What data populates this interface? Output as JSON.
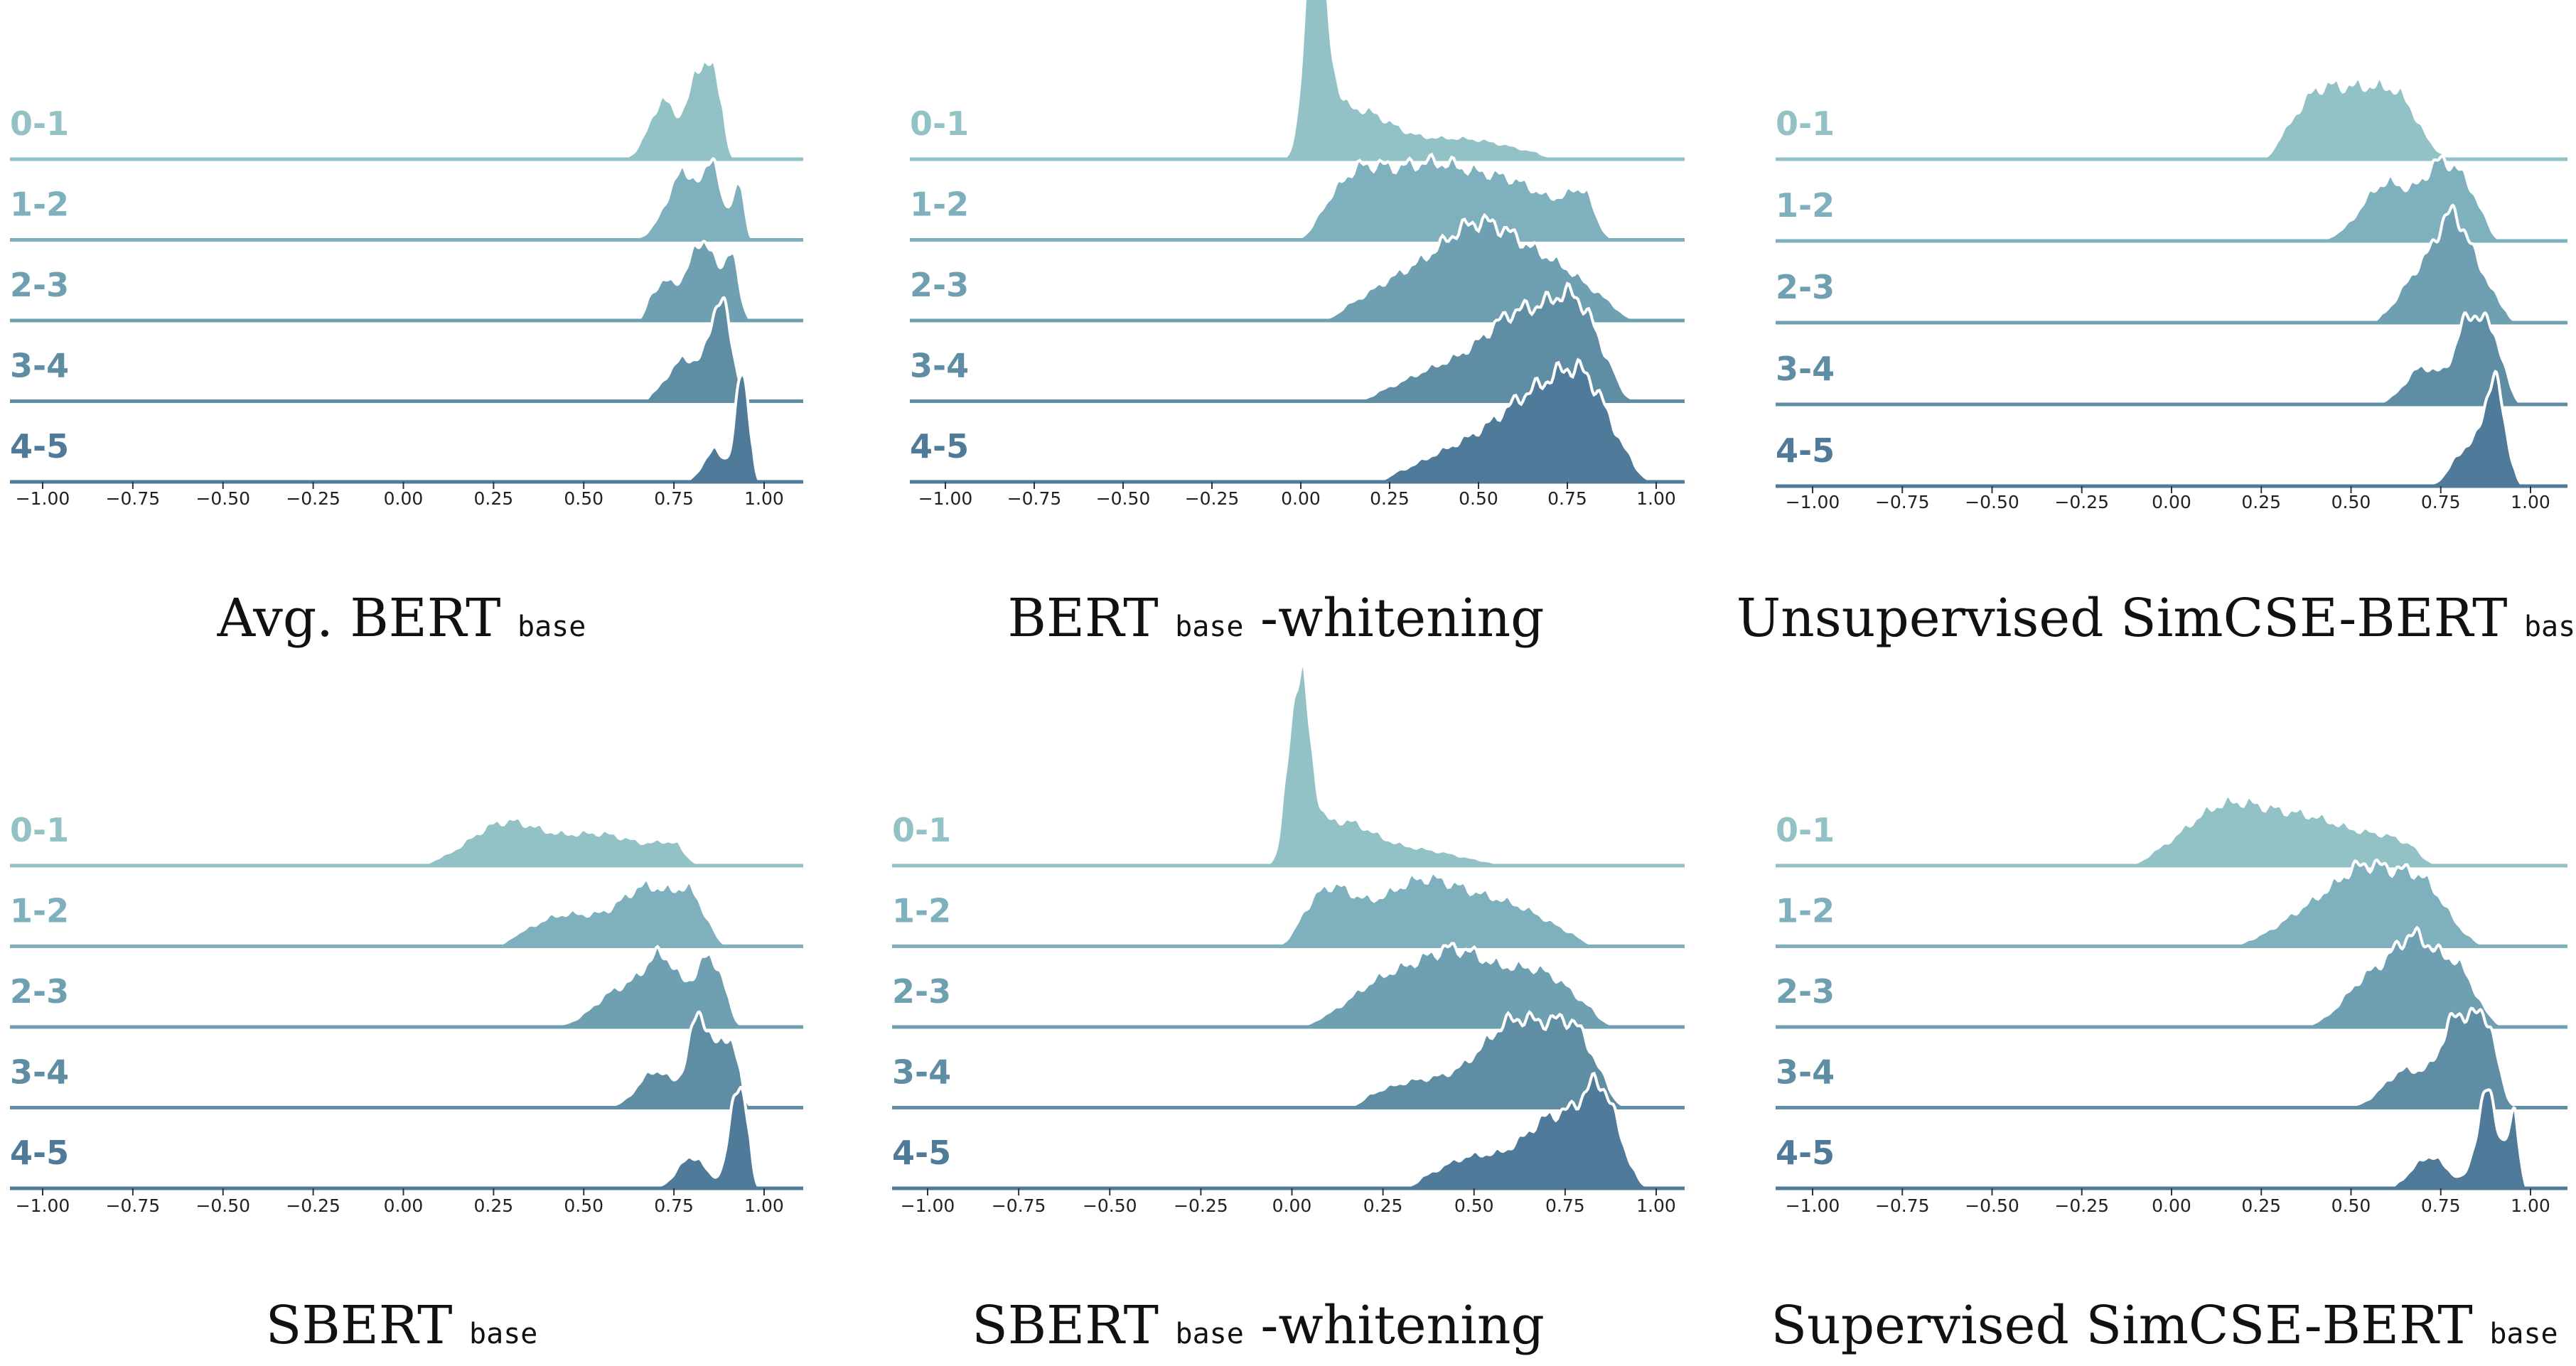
{
  "chart_data": [
    {
      "type": "ridgeline",
      "caption": {
        "pre": "Avg. BERT",
        "sub": "base",
        "post": ""
      },
      "x_ticks": [
        "−1.00",
        "−0.75",
        "−0.50",
        "−0.25",
        "0.00",
        "0.25",
        "0.50",
        "0.75",
        "1.00"
      ],
      "xlim": [
        -1.0,
        1.0
      ],
      "series": [
        {
          "label": "0-1",
          "peaks": [
            [
              0.72,
              0.04,
              0.55
            ],
            [
              0.82,
              0.03,
              0.8
            ],
            [
              0.87,
              0.025,
              0.55
            ]
          ],
          "range": [
            0.53,
            0.92
          ]
        },
        {
          "label": "1-2",
          "peaks": [
            [
              0.78,
              0.05,
              0.65
            ],
            [
              0.86,
              0.02,
              0.6
            ],
            [
              0.93,
              0.02,
              0.55
            ]
          ],
          "range": [
            0.6,
            0.97
          ]
        },
        {
          "label": "2-3",
          "peaks": [
            [
              0.72,
              0.04,
              0.35
            ],
            [
              0.83,
              0.04,
              0.75
            ],
            [
              0.91,
              0.02,
              0.55
            ]
          ],
          "range": [
            0.65,
            0.98
          ]
        },
        {
          "label": "3-4",
          "peaks": [
            [
              0.78,
              0.05,
              0.4
            ],
            [
              0.88,
              0.03,
              0.9
            ]
          ],
          "range": [
            0.66,
            0.97
          ]
        },
        {
          "label": "4-5",
          "peaks": [
            [
              0.86,
              0.03,
              0.3
            ],
            [
              0.94,
              0.02,
              1.0
            ]
          ],
          "range": [
            0.75,
            0.99
          ]
        }
      ]
    },
    {
      "type": "ridgeline",
      "caption": {
        "pre": "BERT",
        "sub": "base",
        "post": "-whitening"
      },
      "x_ticks": [
        "−1.00",
        "−0.75",
        "−0.50",
        "−0.25",
        "0.00",
        "0.25",
        "0.50",
        "0.75",
        "1.00"
      ],
      "xlim": [
        -1.0,
        1.0
      ],
      "series": [
        {
          "label": "0-1",
          "peaks": [
            [
              0.04,
              0.035,
              1.75
            ],
            [
              0.15,
              0.1,
              0.45
            ],
            [
              0.45,
              0.15,
              0.2
            ]
          ],
          "range": [
            -0.05,
            0.73
          ]
        },
        {
          "label": "1-2",
          "peaks": [
            [
              0.15,
              0.08,
              0.5
            ],
            [
              0.35,
              0.12,
              0.65
            ],
            [
              0.6,
              0.12,
              0.5
            ],
            [
              0.8,
              0.05,
              0.35
            ]
          ],
          "range": [
            -0.02,
            0.88
          ]
        },
        {
          "label": "2-3",
          "peaks": [
            [
              0.3,
              0.12,
              0.4
            ],
            [
              0.5,
              0.1,
              0.7
            ],
            [
              0.7,
              0.12,
              0.5
            ]
          ],
          "range": [
            0.05,
            0.95
          ]
        },
        {
          "label": "3-4",
          "peaks": [
            [
              0.4,
              0.12,
              0.3
            ],
            [
              0.62,
              0.1,
              0.75
            ],
            [
              0.78,
              0.07,
              0.75
            ]
          ],
          "range": [
            0.15,
            0.95
          ]
        },
        {
          "label": "4-5",
          "peaks": [
            [
              0.45,
              0.12,
              0.3
            ],
            [
              0.65,
              0.1,
              0.65
            ],
            [
              0.8,
              0.08,
              0.8
            ]
          ],
          "range": [
            0.2,
            1.0
          ]
        }
      ]
    },
    {
      "type": "ridgeline",
      "caption": {
        "pre": "Unsupervised SimCSE-BERT",
        "sub": "base",
        "post": ""
      },
      "x_ticks": [
        "−1.00",
        "−0.75",
        "−0.50",
        "−0.25",
        "0.00",
        "0.25",
        "0.50",
        "0.75",
        "1.00"
      ],
      "xlim": [
        -1.0,
        1.0
      ],
      "series": [
        {
          "label": "0-1",
          "peaks": [
            [
              0.4,
              0.07,
              0.55
            ],
            [
              0.55,
              0.08,
              0.6
            ],
            [
              0.65,
              0.05,
              0.3
            ]
          ],
          "range": [
            0.25,
            0.8
          ]
        },
        {
          "label": "1-2",
          "peaks": [
            [
              0.6,
              0.07,
              0.55
            ],
            [
              0.75,
              0.05,
              0.65
            ],
            [
              0.83,
              0.04,
              0.35
            ]
          ],
          "range": [
            0.4,
            0.93
          ]
        },
        {
          "label": "2-3",
          "peaks": [
            [
              0.7,
              0.06,
              0.5
            ],
            [
              0.78,
              0.04,
              0.65
            ],
            [
              0.85,
              0.05,
              0.45
            ]
          ],
          "range": [
            0.55,
            0.97
          ]
        },
        {
          "label": "3-4",
          "peaks": [
            [
              0.7,
              0.05,
              0.35
            ],
            [
              0.83,
              0.04,
              0.8
            ],
            [
              0.9,
              0.03,
              0.5
            ]
          ],
          "range": [
            0.55,
            0.99
          ]
        },
        {
          "label": "4-5",
          "peaks": [
            [
              0.82,
              0.04,
              0.35
            ],
            [
              0.9,
              0.03,
              0.95
            ]
          ],
          "range": [
            0.6,
            0.99
          ]
        }
      ]
    },
    {
      "type": "ridgeline",
      "caption": {
        "pre": "SBERT",
        "sub": "base",
        "post": ""
      },
      "x_ticks": [
        "−1.00",
        "−0.75",
        "−0.50",
        "−0.25",
        "0.00",
        "0.25",
        "0.50",
        "0.75",
        "1.00"
      ],
      "xlim": [
        -1.0,
        1.0
      ],
      "series": [
        {
          "label": "0-1",
          "peaks": [
            [
              0.28,
              0.1,
              0.4
            ],
            [
              0.55,
              0.12,
              0.3
            ],
            [
              0.75,
              0.05,
              0.15
            ]
          ],
          "range": [
            0.02,
            0.83
          ]
        },
        {
          "label": "1-2",
          "peaks": [
            [
              0.45,
              0.1,
              0.3
            ],
            [
              0.68,
              0.08,
              0.55
            ],
            [
              0.8,
              0.04,
              0.35
            ]
          ],
          "range": [
            0.25,
            0.92
          ]
        },
        {
          "label": "2-3",
          "peaks": [
            [
              0.6,
              0.07,
              0.35
            ],
            [
              0.72,
              0.05,
              0.6
            ],
            [
              0.85,
              0.04,
              0.65
            ]
          ],
          "range": [
            0.38,
            0.95
          ]
        },
        {
          "label": "3-4",
          "peaks": [
            [
              0.7,
              0.05,
              0.35
            ],
            [
              0.82,
              0.03,
              0.85
            ],
            [
              0.9,
              0.03,
              0.65
            ]
          ],
          "range": [
            0.55,
            0.97
          ]
        },
        {
          "label": "4-5",
          "peaks": [
            [
              0.8,
              0.04,
              0.3
            ],
            [
              0.93,
              0.025,
              1.0
            ]
          ],
          "range": [
            0.65,
            0.99
          ]
        }
      ]
    },
    {
      "type": "ridgeline",
      "caption": {
        "pre": "SBERT",
        "sub": "base",
        "post": "-whitening"
      },
      "x_ticks": [
        "−1.00",
        "−0.75",
        "−0.50",
        "−0.25",
        "0.00",
        "0.25",
        "0.50",
        "0.75",
        "1.00"
      ],
      "xlim": [
        -1.0,
        1.0
      ],
      "series": [
        {
          "label": "0-1",
          "peaks": [
            [
              0.02,
              0.03,
              1.65
            ],
            [
              0.13,
              0.09,
              0.4
            ],
            [
              0.35,
              0.12,
              0.15
            ]
          ],
          "range": [
            -0.08,
            0.6
          ]
        },
        {
          "label": "1-2",
          "peaks": [
            [
              0.1,
              0.07,
              0.5
            ],
            [
              0.35,
              0.12,
              0.6
            ],
            [
              0.6,
              0.12,
              0.35
            ]
          ],
          "range": [
            -0.05,
            0.85
          ]
        },
        {
          "label": "2-3",
          "peaks": [
            [
              0.25,
              0.1,
              0.4
            ],
            [
              0.45,
              0.1,
              0.65
            ],
            [
              0.68,
              0.1,
              0.5
            ]
          ],
          "range": [
            0.0,
            0.9
          ]
        },
        {
          "label": "3-4",
          "peaks": [
            [
              0.35,
              0.12,
              0.25
            ],
            [
              0.62,
              0.1,
              0.8
            ],
            [
              0.78,
              0.06,
              0.55
            ]
          ],
          "range": [
            0.15,
            0.93
          ]
        },
        {
          "label": "4-5",
          "peaks": [
            [
              0.5,
              0.1,
              0.3
            ],
            [
              0.72,
              0.08,
              0.65
            ],
            [
              0.85,
              0.05,
              0.8
            ]
          ],
          "range": [
            0.3,
            1.0
          ]
        }
      ]
    },
    {
      "type": "ridgeline",
      "caption": {
        "pre": "Supervised SimCSE-BERT",
        "sub": "base",
        "post": ""
      },
      "x_ticks": [
        "−1.00",
        "−0.75",
        "−0.50",
        "−0.25",
        "0.00",
        "0.25",
        "0.50",
        "0.75",
        "1.00"
      ],
      "xlim": [
        -1.0,
        1.0
      ],
      "series": [
        {
          "label": "0-1",
          "peaks": [
            [
              0.15,
              0.12,
              0.55
            ],
            [
              0.4,
              0.12,
              0.4
            ],
            [
              0.62,
              0.08,
              0.2
            ]
          ],
          "range": [
            -0.13,
            0.75
          ]
        },
        {
          "label": "1-2",
          "peaks": [
            [
              0.4,
              0.1,
              0.35
            ],
            [
              0.55,
              0.08,
              0.6
            ],
            [
              0.7,
              0.07,
              0.55
            ]
          ],
          "range": [
            0.15,
            0.9
          ]
        },
        {
          "label": "2-3",
          "peaks": [
            [
              0.55,
              0.07,
              0.45
            ],
            [
              0.68,
              0.06,
              0.75
            ],
            [
              0.8,
              0.05,
              0.5
            ]
          ],
          "range": [
            0.35,
            0.95
          ]
        },
        {
          "label": "3-4",
          "peaks": [
            [
              0.65,
              0.06,
              0.35
            ],
            [
              0.8,
              0.05,
              0.85
            ],
            [
              0.88,
              0.03,
              0.6
            ]
          ],
          "range": [
            0.4,
            0.98
          ]
        },
        {
          "label": "4-5",
          "peaks": [
            [
              0.72,
              0.05,
              0.3
            ],
            [
              0.88,
              0.03,
              0.9
            ],
            [
              0.96,
              0.02,
              0.7
            ]
          ],
          "range": [
            0.6,
            0.99
          ]
        }
      ]
    }
  ],
  "colors": [
    "#92c2c6",
    "#7eb1bd",
    "#6fa0b1",
    "#5f8ea4",
    "#4f7a99"
  ],
  "outline_color": "#ffffff"
}
